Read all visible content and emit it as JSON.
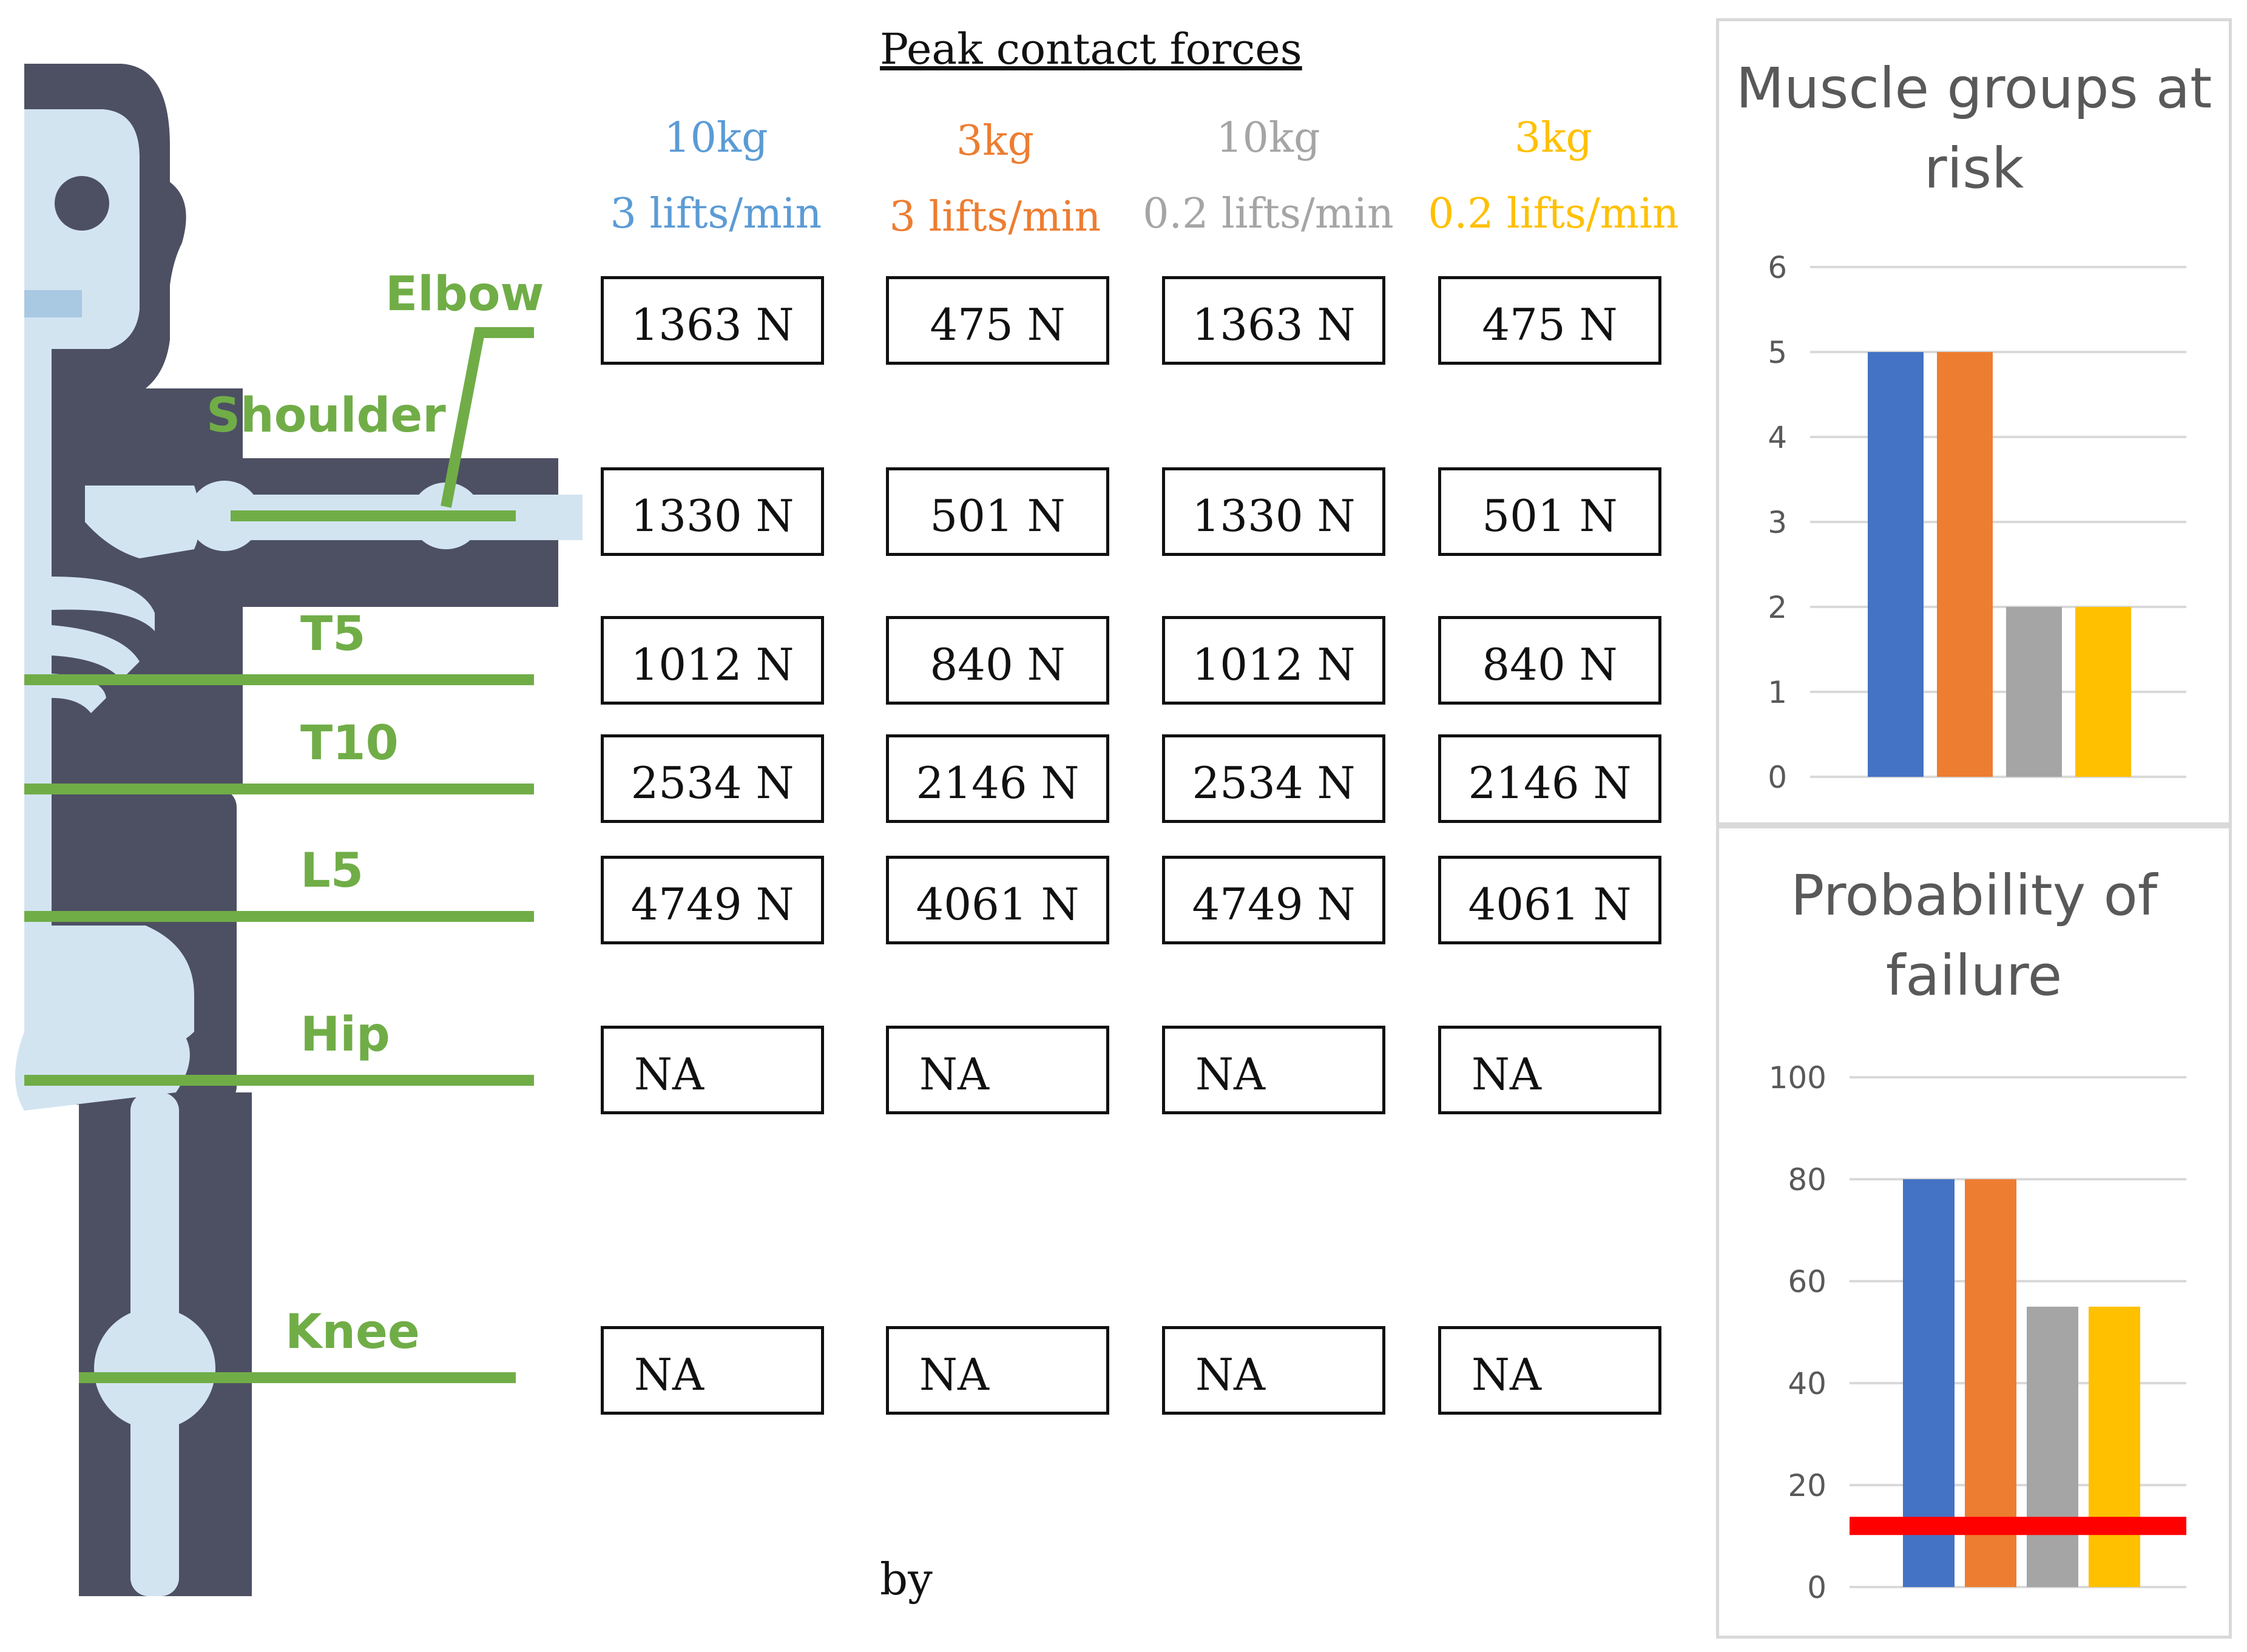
{
  "table": {
    "title": "Peak contact forces",
    "conditions": [
      {
        "load": "10kg",
        "rate": "3 lifts/min",
        "color": "#5B9BD5"
      },
      {
        "load": "3kg",
        "rate": "3 lifts/min",
        "color": "#ED7D31"
      },
      {
        "load": "10kg",
        "rate": "0.2 lifts/min",
        "color": "#A5A5A5"
      },
      {
        "load": "3kg",
        "rate": "0.2 lifts/min",
        "color": "#FFC000"
      }
    ],
    "rows": [
      {
        "joint": "Elbow",
        "values": [
          "1363 N",
          "475 N",
          "1363 N",
          "475 N"
        ]
      },
      {
        "joint": "Shoulder",
        "values": [
          "1330 N",
          "501 N",
          "1330 N",
          "501 N"
        ]
      },
      {
        "joint": "T5",
        "values": [
          "1012 N",
          "840 N",
          "1012 N",
          "840 N"
        ]
      },
      {
        "joint": "T10",
        "values": [
          "2534 N",
          "2146 N",
          "2534 N",
          "2146 N"
        ]
      },
      {
        "joint": "L5",
        "values": [
          "4749 N",
          "4061 N",
          "4749 N",
          "4061 N"
        ]
      },
      {
        "joint": "Hip",
        "values": [
          "NA",
          "NA",
          "NA",
          "NA"
        ]
      },
      {
        "joint": "Knee",
        "values": [
          "NA",
          "NA",
          "NA",
          "NA"
        ]
      }
    ],
    "footer": "by"
  },
  "joint_line_color": "#70AD47",
  "skeleton_colors": {
    "dark": "#4D5063",
    "light": "#D3E4F1"
  },
  "chart_data": [
    {
      "type": "bar",
      "title": "Muscle groups at risk",
      "categories": [
        "10kg 3 lifts/min",
        "3kg 3 lifts/min",
        "10kg 0.2 lifts/min",
        "3kg 0.2 lifts/min"
      ],
      "values": [
        5,
        5,
        2,
        2
      ],
      "colors": [
        "#4472C4",
        "#ED7D31",
        "#A5A5A5",
        "#FFC000"
      ],
      "ylim": [
        0,
        6
      ],
      "yticks": [
        0,
        1,
        2,
        3,
        4,
        5,
        6
      ],
      "grid": true
    },
    {
      "type": "bar",
      "title": "Probability of failure",
      "categories": [
        "10kg 3 lifts/min",
        "3kg 3 lifts/min",
        "10kg 0.2 lifts/min",
        "3kg 0.2 lifts/min"
      ],
      "values": [
        80,
        80,
        55,
        55
      ],
      "colors": [
        "#4472C4",
        "#ED7D31",
        "#A5A5A5",
        "#FFC000"
      ],
      "ylim": [
        0,
        100
      ],
      "yticks": [
        0,
        20,
        40,
        60,
        80,
        100
      ],
      "grid": true,
      "threshold": {
        "value": 12,
        "color": "#FF0000"
      }
    }
  ]
}
